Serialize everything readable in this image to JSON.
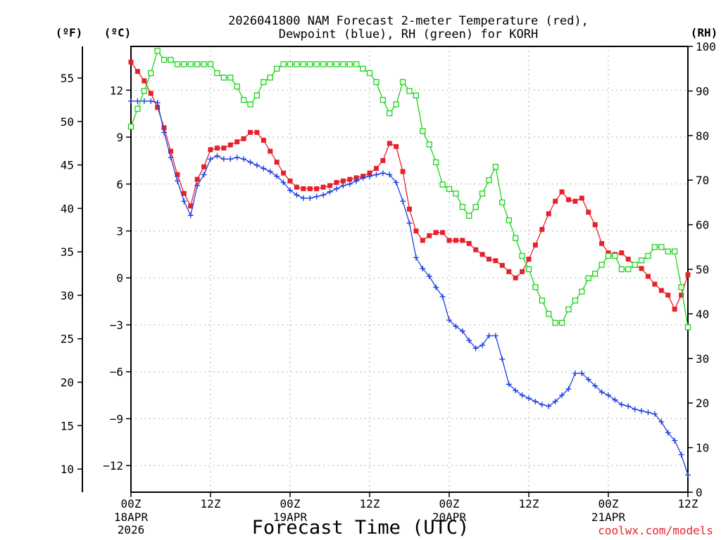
{
  "chart_data": {
    "type": "line",
    "title_lines": [
      "2026041800 NAM Forecast 2-meter Temperature (red),",
      "Dewpoint (blue), RH (green) for KORH"
    ],
    "xlabel": "Forecast Time (UTC)",
    "left_unit_f": "(ºF)",
    "left_unit_c": "(ºC)",
    "right_unit": "(RH)",
    "credit": "coolwx.com/models",
    "x_ticks": [
      {
        "hour": 0,
        "label": "00Z",
        "sub": [
          "18APR",
          "2026"
        ]
      },
      {
        "hour": 12,
        "label": "12Z",
        "sub": []
      },
      {
        "hour": 24,
        "label": "00Z",
        "sub": [
          "19APR"
        ]
      },
      {
        "hour": 36,
        "label": "12Z",
        "sub": []
      },
      {
        "hour": 48,
        "label": "00Z",
        "sub": [
          "20APR"
        ]
      },
      {
        "hour": 60,
        "label": "12Z",
        "sub": []
      },
      {
        "hour": 72,
        "label": "00Z",
        "sub": [
          "21APR"
        ]
      },
      {
        "hour": 84,
        "label": "12Z",
        "sub": []
      }
    ],
    "xlim": [
      0,
      84
    ],
    "ylim_c": [
      -13.7,
      14.8
    ],
    "ylim_rh": [
      0,
      100
    ],
    "y_ticks_c": [
      "−12",
      "−9",
      "−6",
      "−3",
      "0",
      "3",
      "6",
      "9",
      "12"
    ],
    "y_ticks_f": [
      "10",
      "15",
      "20",
      "25",
      "30",
      "35",
      "40",
      "45",
      "50",
      "55"
    ],
    "y_ticks_rh": [
      "0",
      "10",
      "20",
      "30",
      "40",
      "50",
      "60",
      "70",
      "80",
      "90",
      "100"
    ],
    "grid": true,
    "series": [
      {
        "name": "Temperature",
        "color": "#e6212b",
        "marker": "filled-square",
        "axis": "c",
        "x": [
          0,
          1,
          2,
          3,
          4,
          5,
          6,
          7,
          8,
          9,
          10,
          11,
          12,
          13,
          14,
          15,
          16,
          17,
          18,
          19,
          20,
          21,
          22,
          23,
          24,
          25,
          26,
          27,
          28,
          29,
          30,
          31,
          32,
          33,
          34,
          35,
          36,
          37,
          38,
          39,
          40,
          41,
          42,
          43,
          44,
          45,
          46,
          47,
          48,
          49,
          50,
          51,
          52,
          53,
          54,
          55,
          56,
          57,
          58,
          59,
          60,
          61,
          62,
          63,
          64,
          65,
          66,
          67,
          68,
          69,
          70,
          71,
          72,
          73,
          74,
          75,
          76,
          77,
          78,
          79,
          80,
          81,
          82,
          83,
          84
        ],
        "values": [
          13.8,
          13.2,
          12.6,
          11.8,
          10.9,
          9.6,
          8.1,
          6.6,
          5.4,
          4.6,
          6.3,
          7.1,
          8.2,
          8.3,
          8.3,
          8.5,
          8.7,
          8.9,
          9.3,
          9.3,
          8.8,
          8.1,
          7.4,
          6.7,
          6.2,
          5.8,
          5.7,
          5.7,
          5.7,
          5.8,
          5.9,
          6.1,
          6.2,
          6.3,
          6.4,
          6.5,
          6.7,
          7.0,
          7.5,
          8.6,
          8.4,
          6.8,
          4.4,
          3.0,
          2.4,
          2.7,
          2.9,
          2.9,
          2.4,
          2.4,
          2.4,
          2.2,
          1.8,
          1.5,
          1.2,
          1.1,
          0.8,
          0.4,
          0.0,
          0.4,
          1.2,
          2.1,
          3.1,
          4.1,
          4.9,
          5.5,
          5.0,
          4.9,
          5.1,
          4.2,
          3.4,
          2.2,
          1.6,
          1.5,
          1.6,
          1.2,
          0.8,
          0.6,
          0.1,
          -0.4,
          -0.8,
          -1.1,
          -2.0,
          -1.1,
          0.2
        ]
      },
      {
        "name": "Dewpoint",
        "color": "#1d3fe0",
        "marker": "plus",
        "axis": "c",
        "x": [
          0,
          1,
          2,
          3,
          4,
          5,
          6,
          7,
          8,
          9,
          10,
          11,
          12,
          13,
          14,
          15,
          16,
          17,
          18,
          19,
          20,
          21,
          22,
          23,
          24,
          25,
          26,
          27,
          28,
          29,
          30,
          31,
          32,
          33,
          34,
          35,
          36,
          37,
          38,
          39,
          40,
          41,
          42,
          43,
          44,
          45,
          46,
          47,
          48,
          49,
          50,
          51,
          52,
          53,
          54,
          55,
          56,
          57,
          58,
          59,
          60,
          61,
          62,
          63,
          64,
          65,
          66,
          67,
          68,
          69,
          70,
          71,
          72,
          73,
          74,
          75,
          76,
          77,
          78,
          79,
          80,
          81,
          82,
          83,
          84
        ],
        "values": [
          11.3,
          11.3,
          11.3,
          11.3,
          11.2,
          9.3,
          7.7,
          6.2,
          4.9,
          4.0,
          5.9,
          6.6,
          7.6,
          7.8,
          7.6,
          7.6,
          7.7,
          7.6,
          7.4,
          7.2,
          7.0,
          6.8,
          6.5,
          6.1,
          5.6,
          5.3,
          5.1,
          5.1,
          5.2,
          5.3,
          5.5,
          5.7,
          5.9,
          6.0,
          6.2,
          6.4,
          6.5,
          6.6,
          6.7,
          6.6,
          6.1,
          4.9,
          3.5,
          1.3,
          0.6,
          0.1,
          -0.6,
          -1.2,
          -2.7,
          -3.1,
          -3.4,
          -4.0,
          -4.5,
          -4.3,
          -3.7,
          -3.7,
          -5.2,
          -6.8,
          -7.2,
          -7.5,
          -7.7,
          -7.9,
          -8.1,
          -8.2,
          -7.9,
          -7.5,
          -7.1,
          -6.1,
          -6.1,
          -6.5,
          -6.9,
          -7.3,
          -7.5,
          -7.8,
          -8.1,
          -8.2,
          -8.4,
          -8.5,
          -8.6,
          -8.7,
          -9.2,
          -9.9,
          -10.4,
          -11.3,
          -12.6
        ]
      },
      {
        "name": "RH",
        "color": "#19d319",
        "marker": "hollow-square",
        "axis": "rh",
        "x": [
          0,
          1,
          2,
          3,
          4,
          5,
          6,
          7,
          8,
          9,
          10,
          11,
          12,
          13,
          14,
          15,
          16,
          17,
          18,
          19,
          20,
          21,
          22,
          23,
          24,
          25,
          26,
          27,
          28,
          29,
          30,
          31,
          32,
          33,
          34,
          35,
          36,
          37,
          38,
          39,
          40,
          41,
          42,
          43,
          44,
          45,
          46,
          47,
          48,
          49,
          50,
          51,
          52,
          53,
          54,
          55,
          56,
          57,
          58,
          59,
          60,
          61,
          62,
          63,
          64,
          65,
          66,
          67,
          68,
          69,
          70,
          71,
          72,
          73,
          74,
          75,
          76,
          77,
          78,
          79,
          80,
          81,
          82,
          83,
          84
        ],
        "values": [
          82,
          86,
          90,
          94,
          99,
          97,
          97,
          96,
          96,
          96,
          96,
          96,
          96,
          94,
          93,
          93,
          91,
          88,
          87,
          89,
          92,
          93,
          95,
          96,
          96,
          96,
          96,
          96,
          96,
          96,
          96,
          96,
          96,
          96,
          96,
          95,
          94,
          92,
          88,
          85,
          87,
          92,
          90,
          89,
          81,
          78,
          74,
          69,
          68,
          67,
          64,
          62,
          64,
          67,
          70,
          73,
          65,
          61,
          57,
          53,
          50,
          46,
          43,
          40,
          38,
          38,
          41,
          43,
          45,
          48,
          49,
          51,
          53,
          53,
          50,
          50,
          51,
          52,
          53,
          55,
          55,
          54,
          54,
          46,
          37
        ]
      }
    ]
  }
}
